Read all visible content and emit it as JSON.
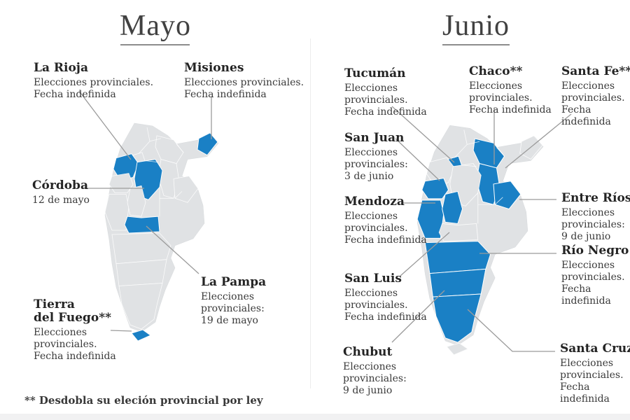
{
  "colors": {
    "accent": "#1a80c5",
    "map_base": "#e0e2e4",
    "leader_line": "#9b9b9b",
    "text": "#2e2e2e",
    "title": "#414141",
    "underline": "#8c8c8c",
    "strip": "#f1f1f2",
    "divider": "#ececec"
  },
  "footnote": "** Desdobla su eleción provincial por ley",
  "panels": [
    {
      "title": "Mayo",
      "labels": [
        {
          "region": "la_rioja",
          "name": "La Rioja",
          "detail": "Elecciones provinciales.\nFecha indefinida"
        },
        {
          "region": "misiones",
          "name": "Misiones",
          "detail": "Elecciones provinciales.\nFecha indefinida"
        },
        {
          "region": "cordoba",
          "name": "Córdoba",
          "detail": "12 de mayo"
        },
        {
          "region": "la_pampa",
          "name": "La Pampa",
          "detail": "Elecciones\nprovinciales:\n19 de mayo"
        },
        {
          "region": "tierra_del_fuego",
          "name": "Tierra\ndel Fuego**",
          "detail": "Elecciones\nprovinciales.\nFecha indefinida"
        }
      ]
    },
    {
      "title": "Junio",
      "labels": [
        {
          "region": "tucuman",
          "name": "Tucumán",
          "detail": "Elecciones\nprovinciales.\nFecha indefinida"
        },
        {
          "region": "chaco",
          "name": "Chaco**",
          "detail": "Elecciones\nprovinciales.\nFecha indefinida"
        },
        {
          "region": "santa_fe",
          "name": "Santa Fe**",
          "detail": "Elecciones\nprovinciales.\nFecha indefinida"
        },
        {
          "region": "san_juan",
          "name": "San Juan",
          "detail": "Elecciones\nprovinciales:\n3 de junio"
        },
        {
          "region": "mendoza",
          "name": "Mendoza",
          "detail": "Elecciones\nprovinciales.\nFecha indefinida"
        },
        {
          "region": "entre_rios",
          "name": "Entre Ríos",
          "detail": "Elecciones\nprovinciales:\n9 de junio"
        },
        {
          "region": "rio_negro",
          "name": "Río Negro",
          "detail": "Elecciones\nprovinciales.\nFecha indefinida"
        },
        {
          "region": "san_luis",
          "name": "San Luis",
          "detail": "Elecciones\nprovinciales.\nFecha indefinida"
        },
        {
          "region": "chubut",
          "name": "Chubut",
          "detail": "Elecciones\nprovinciales:\n9 de junio"
        },
        {
          "region": "santa_cruz",
          "name": "Santa Cruz",
          "detail": "Elecciones\nprovinciales.\nFecha indefinida"
        }
      ]
    }
  ]
}
